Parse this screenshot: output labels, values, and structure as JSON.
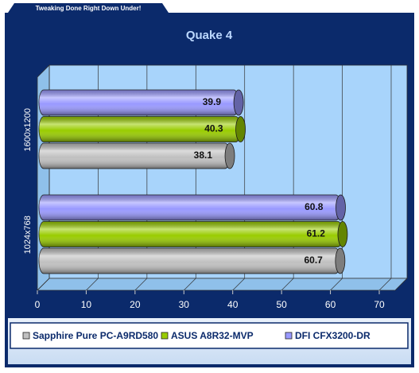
{
  "banner": "Tweaking Done Right Down Under!",
  "chart_data": {
    "type": "bar",
    "orientation": "horizontal",
    "title": "Quake 4",
    "categories": [
      "1600x1200",
      "1024x768"
    ],
    "series": [
      {
        "name": "Sapphire Pure PC-A9RD580",
        "color": "#c0c0c0",
        "values": [
          38.1,
          60.7
        ]
      },
      {
        "name": "ASUS A8R32-MVP",
        "color": "#99cc00",
        "values": [
          40.3,
          61.2
        ]
      },
      {
        "name": "DFI CFX3200-DR",
        "color": "#9999ff",
        "values": [
          39.9,
          60.8
        ]
      }
    ],
    "xlim": [
      0,
      70
    ],
    "xticks": [
      0,
      10,
      20,
      30,
      40,
      50,
      60,
      70
    ],
    "grid": true,
    "legend": "bottom"
  }
}
